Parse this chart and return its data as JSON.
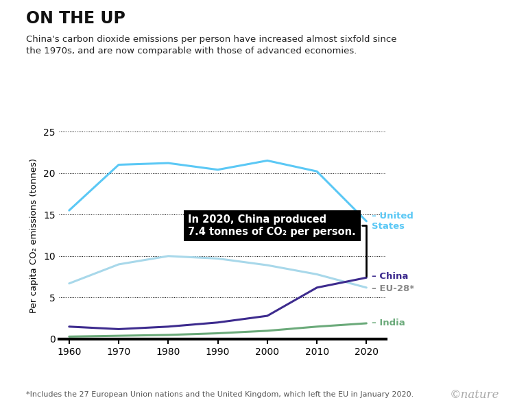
{
  "title": "ON THE UP",
  "subtitle": "China's carbon dioxide emissions per person have increased almost sixfold since\nthe 1970s, and are now comparable with those of advanced economies.",
  "ylabel": "Per capita CO₂ emissions (tonnes)",
  "footnote": "*Includes the 27 European Union nations and the United Kingdom, which left the EU in January 2020.",
  "watermark": "©nature",
  "years": [
    1960,
    1970,
    1980,
    1990,
    2000,
    2010,
    2020
  ],
  "united_states": [
    15.5,
    21.0,
    21.2,
    20.4,
    21.5,
    20.2,
    14.2
  ],
  "eu28": [
    6.7,
    9.0,
    10.0,
    9.7,
    8.9,
    7.8,
    6.2
  ],
  "china": [
    1.5,
    1.2,
    1.5,
    2.0,
    2.8,
    6.2,
    7.4
  ],
  "india": [
    0.3,
    0.4,
    0.5,
    0.7,
    1.0,
    1.5,
    1.9
  ],
  "colors": {
    "united_states": "#5BC8F5",
    "eu28": "#A8D8EA",
    "china": "#3D2B8E",
    "india": "#6BAA7A"
  },
  "annotation_text": "In 2020, China produced\n7.4 tonnes of CO₂ per person.",
  "xlim": [
    1958,
    2024
  ],
  "ylim": [
    0,
    25
  ],
  "yticks": [
    0,
    5,
    10,
    15,
    20,
    25
  ],
  "xticks": [
    1960,
    1970,
    1980,
    1990,
    2000,
    2010,
    2020
  ],
  "background_color": "#FFFFFF",
  "line_width": 2.2
}
